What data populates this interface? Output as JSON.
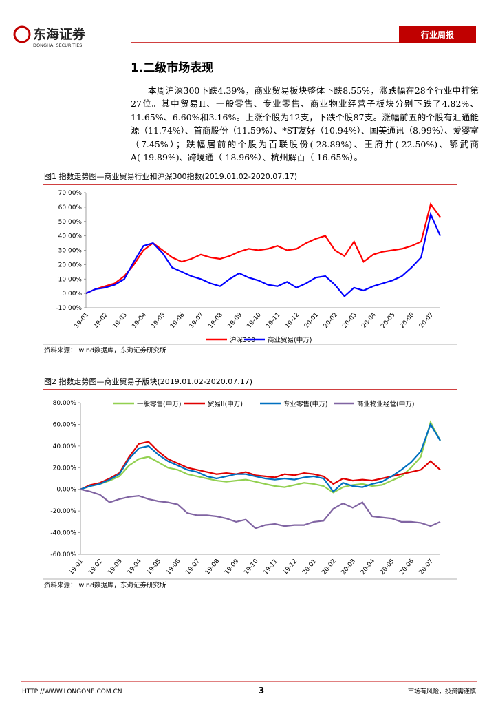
{
  "header": {
    "logo": "东海证券",
    "logo_en": "DONGHAI SECURITIES",
    "tag": "行业周报"
  },
  "section": {
    "title": "1.二级市场表现",
    "paragraph": "本周沪深300下跌4.39%，商业贸易板块整体下跌8.55%，涨跌幅在28个行业中排第27位。其中贸易II、一般零售、专业零售、商业物业经营子板块分别下跌了4.82%、11.65%、6.60%和3.16%。上涨个股为12支，下跌个股87支。涨幅前五的个股有汇通能源（11.74%）、首商股份（11.59%）、*ST友好（10.94%）、国美通讯（8.99%）、爱婴室（7.45%）；跌幅居前的个股为百联股份(-28.89%)、王府井(-22.50%)、鄂武商A(-19.89%)、跨境通（-18.96%）、杭州解百（-16.65%）。"
  },
  "footer": {
    "url": "HTTP://WWW.LONGONE.COM.CN",
    "page": "3",
    "note": "市场有风险，投资需谨慎"
  },
  "chart_data": [
    {
      "type": "line",
      "title": "图1  指数走势图—商业贸易行业和沪深300指数(2019.01.02-2020.07.17)",
      "source": "资料来源：  wind数据库，东海证券研究所",
      "categories": [
        "19-01",
        null,
        "19-02",
        null,
        "19-03",
        null,
        "19-04",
        null,
        "19-05",
        null,
        "19-06",
        null,
        "19-07",
        null,
        "19-08",
        null,
        "19-09",
        null,
        "19-10",
        null,
        "19-11",
        null,
        "19-12",
        null,
        "20-01",
        null,
        "20-02",
        null,
        "20-03",
        null,
        "20-04",
        null,
        "20-05",
        null,
        "20-06",
        null,
        "20-07",
        null
      ],
      "ylim": [
        -10,
        70
      ],
      "yticks": [
        {
          "value": -10,
          "label": "-10.00%"
        },
        {
          "value": 0,
          "label": "0.00%"
        },
        {
          "value": 10,
          "label": "10.00%"
        },
        {
          "value": 20,
          "label": "20.00%"
        },
        {
          "value": 30,
          "label": "30.00%"
        },
        {
          "value": 40,
          "label": "40.00%"
        },
        {
          "value": 50,
          "label": "50.00%"
        },
        {
          "value": 60,
          "label": "60.00%"
        },
        {
          "value": 70,
          "label": "70.00%"
        }
      ],
      "grid": false,
      "legend": "bottom",
      "series": [
        {
          "name": "沪深300",
          "color": "#ff0000",
          "values": [
            0,
            3,
            5,
            7,
            12,
            20,
            30,
            35,
            30,
            25,
            22,
            24,
            27,
            25,
            24,
            26,
            29,
            31,
            30,
            31,
            33,
            30,
            31,
            35,
            38,
            40,
            30,
            26,
            36,
            22,
            27,
            29,
            30,
            31,
            33,
            36,
            62,
            53
          ]
        },
        {
          "name": "商业贸易(中万)",
          "color": "#0000ff",
          "values": [
            0,
            3,
            4,
            6,
            10,
            22,
            33,
            35,
            28,
            18,
            15,
            12,
            10,
            7,
            5,
            10,
            14,
            11,
            9,
            6,
            5,
            8,
            4,
            7,
            11,
            12,
            6,
            -2,
            4,
            2,
            5,
            7,
            9,
            12,
            18,
            25,
            55,
            40
          ]
        }
      ]
    },
    {
      "type": "line",
      "title": "图2  指数走势图—商业贸易子版块(2019.01.02-2020.07.17)",
      "source": "资料来源：  wind数据库，东海证券研究所",
      "categories": [
        "19-01",
        null,
        "19-02",
        null,
        "19-03",
        null,
        "19-04",
        null,
        "19-05",
        null,
        "19-06",
        null,
        "19-07",
        null,
        "19-08",
        null,
        "19-09",
        null,
        "19-10",
        null,
        "19-11",
        null,
        "19-12",
        null,
        "20-01",
        null,
        "20-02",
        null,
        "20-03",
        null,
        "20-04",
        null,
        "20-05",
        null,
        "20-06",
        null,
        "20-07",
        null
      ],
      "ylim": [
        -60,
        80
      ],
      "yticks": [
        {
          "value": -60,
          "label": "-60.00%"
        },
        {
          "value": -40,
          "label": "-40.00%"
        },
        {
          "value": -20,
          "label": "-20.00%"
        },
        {
          "value": 0,
          "label": "0.00%"
        },
        {
          "value": 20,
          "label": "20.00%"
        },
        {
          "value": 40,
          "label": "40.00%"
        },
        {
          "value": 60,
          "label": "60.00%"
        },
        {
          "value": 80,
          "label": "80.00%"
        }
      ],
      "grid": false,
      "legend": "top",
      "series": [
        {
          "name": "一般零售(中万)",
          "color": "#92d050",
          "values": [
            0,
            3,
            5,
            8,
            12,
            22,
            28,
            30,
            25,
            20,
            18,
            14,
            12,
            10,
            8,
            7,
            8,
            9,
            7,
            5,
            3,
            2,
            4,
            6,
            5,
            3,
            -3,
            2,
            4,
            5,
            3,
            4,
            8,
            12,
            20,
            30,
            62,
            45
          ]
        },
        {
          "name": "贸易II(中万)",
          "color": "#e00000",
          "values": [
            0,
            4,
            6,
            10,
            15,
            30,
            42,
            44,
            35,
            28,
            24,
            20,
            18,
            16,
            14,
            15,
            14,
            16,
            13,
            12,
            11,
            14,
            13,
            15,
            14,
            12,
            5,
            10,
            8,
            9,
            8,
            10,
            12,
            14,
            16,
            18,
            26,
            18
          ]
        },
        {
          "name": "专业零售(中万)",
          "color": "#0070c0",
          "values": [
            0,
            3,
            5,
            9,
            14,
            28,
            38,
            40,
            32,
            26,
            22,
            18,
            16,
            12,
            10,
            12,
            14,
            14,
            12,
            10,
            9,
            10,
            9,
            11,
            12,
            10,
            -2,
            6,
            3,
            2,
            5,
            7,
            12,
            18,
            25,
            35,
            60,
            45
          ]
        },
        {
          "name": "商业物业经营(中万)",
          "color": "#8064a2",
          "values": [
            0,
            -2,
            -5,
            -12,
            -9,
            -7,
            -6,
            -9,
            -11,
            -12,
            -14,
            -22,
            -24,
            -24,
            -25,
            -27,
            -30,
            -28,
            -36,
            -33,
            -32,
            -34,
            -33,
            -33,
            -30,
            -29,
            -18,
            -13,
            -17,
            -12,
            -25,
            -26,
            -27,
            -30,
            -30,
            -31,
            -34,
            -30
          ]
        }
      ]
    }
  ]
}
